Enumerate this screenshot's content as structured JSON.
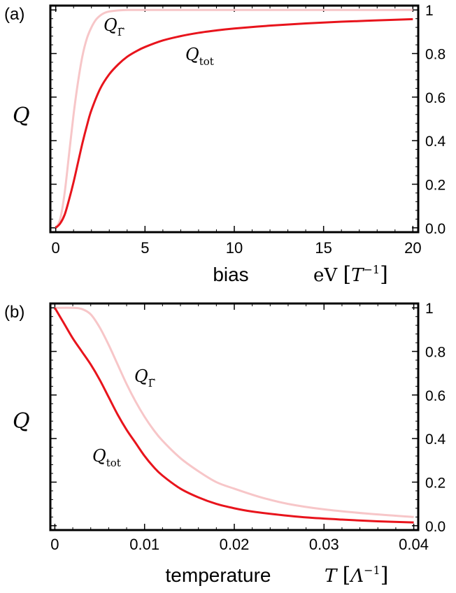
{
  "colors": {
    "tot": "#e8141c",
    "gamma": "#f7c6c8",
    "axis": "#000000"
  },
  "chart_data": [
    {
      "type": "line",
      "panel_label": "(a)",
      "xlabel": "bias",
      "xunit_main": "eV",
      "xunit_bracket_symbol": "T",
      "xunit_exponent": "−1",
      "ylabel": "Q",
      "xlim": [
        -0.3,
        20.3
      ],
      "ylim": [
        -0.02,
        1.02
      ],
      "x_ticks": [
        0,
        5,
        10,
        15,
        20
      ],
      "x_tick_labels": [
        "0",
        "5",
        "10",
        "15",
        "20"
      ],
      "y_ticks": [
        0,
        0.2,
        0.4,
        0.6,
        0.8,
        1
      ],
      "y_tick_labels": [
        "0.0",
        "0.2",
        "0.4",
        "0.6",
        "0.8",
        "1"
      ],
      "y_axis_side": "right",
      "series": [
        {
          "key": "gamma",
          "label_main": "Q",
          "label_sub": "Γ̃",
          "x": [
            0,
            0.25,
            0.5,
            0.75,
            1,
            1.25,
            1.5,
            1.75,
            2,
            2.25,
            2.5,
            2.75,
            3,
            3.5,
            4,
            5,
            6,
            8,
            10,
            14,
            20
          ],
          "y": [
            0,
            0.04,
            0.16,
            0.34,
            0.52,
            0.67,
            0.79,
            0.87,
            0.92,
            0.955,
            0.975,
            0.987,
            0.993,
            0.998,
            1,
            1,
            1,
            1,
            1,
            1,
            1
          ]
        },
        {
          "key": "tot",
          "label_main": "Q",
          "label_sub": "tot",
          "x": [
            0,
            0.25,
            0.5,
            0.75,
            1,
            1.25,
            1.5,
            1.75,
            2,
            2.5,
            3,
            3.5,
            4,
            4.5,
            5,
            6,
            7,
            8,
            9,
            10,
            12,
            14,
            16,
            18,
            20
          ],
          "y": [
            0,
            0.02,
            0.06,
            0.13,
            0.21,
            0.3,
            0.39,
            0.47,
            0.54,
            0.64,
            0.705,
            0.75,
            0.785,
            0.81,
            0.83,
            0.86,
            0.88,
            0.895,
            0.906,
            0.915,
            0.928,
            0.938,
            0.946,
            0.952,
            0.958
          ]
        }
      ]
    },
    {
      "type": "line",
      "panel_label": "(b)",
      "xlabel": "temperature",
      "xunit_symbol": "T",
      "xunit_bracket_symbol": "Λ",
      "xunit_exponent": "−1",
      "ylabel": "Q",
      "xlim": [
        -0.0005,
        0.0405
      ],
      "ylim": [
        -0.02,
        1.02
      ],
      "x_ticks": [
        0,
        0.01,
        0.02,
        0.03,
        0.04
      ],
      "x_tick_labels": [
        "0",
        "0.01",
        "0.02",
        "0.03",
        "0.04"
      ],
      "y_ticks": [
        0,
        0.2,
        0.4,
        0.6,
        0.8,
        1
      ],
      "y_tick_labels": [
        "0.0",
        "0.2",
        "0.4",
        "0.6",
        "0.8",
        "1"
      ],
      "y_axis_side": "right",
      "series": [
        {
          "key": "gamma",
          "label_main": "Q",
          "label_sub": "Γ̃",
          "x": [
            0,
            0.002,
            0.003,
            0.004,
            0.005,
            0.006,
            0.007,
            0.008,
            0.009,
            0.01,
            0.011,
            0.012,
            0.014,
            0.016,
            0.018,
            0.02,
            0.023,
            0.026,
            0.03,
            0.035,
            0.04
          ],
          "y": [
            1,
            1,
            0.995,
            0.97,
            0.91,
            0.83,
            0.74,
            0.65,
            0.57,
            0.5,
            0.44,
            0.39,
            0.31,
            0.25,
            0.2,
            0.17,
            0.13,
            0.1,
            0.075,
            0.055,
            0.04
          ]
        },
        {
          "key": "tot",
          "label_main": "Q",
          "label_sub": "tot",
          "x": [
            0,
            0.001,
            0.002,
            0.003,
            0.004,
            0.005,
            0.006,
            0.007,
            0.008,
            0.009,
            0.01,
            0.011,
            0.012,
            0.014,
            0.016,
            0.018,
            0.02,
            0.022,
            0.025,
            0.028,
            0.032,
            0.036,
            0.04
          ],
          "y": [
            1,
            0.93,
            0.86,
            0.8,
            0.74,
            0.67,
            0.59,
            0.51,
            0.44,
            0.38,
            0.32,
            0.27,
            0.23,
            0.17,
            0.13,
            0.1,
            0.08,
            0.065,
            0.05,
            0.038,
            0.028,
            0.02,
            0.015
          ]
        }
      ]
    }
  ]
}
